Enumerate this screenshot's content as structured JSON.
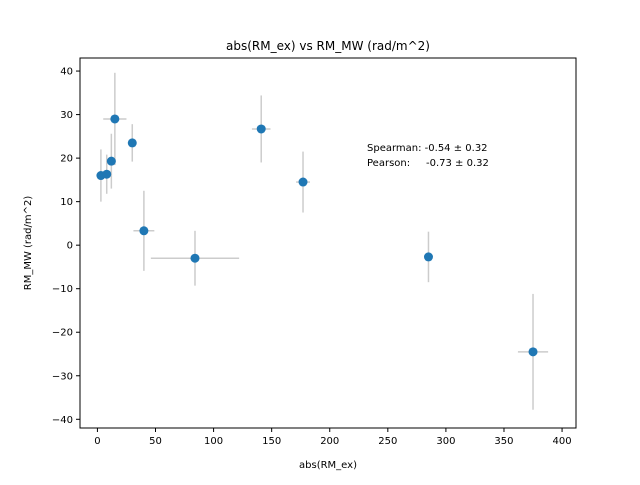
{
  "chart_data": {
    "type": "scatter",
    "title": "abs(RM_ex) vs RM_MW (rad/m^2)",
    "xlabel": "abs(RM_ex)",
    "ylabel": "RM_MW (rad/m^2)",
    "xlim": [
      -15,
      412
    ],
    "ylim": [
      -42,
      43
    ],
    "xticks": [
      0,
      50,
      100,
      150,
      200,
      250,
      300,
      350,
      400
    ],
    "yticks": [
      -40,
      -30,
      -20,
      -10,
      0,
      10,
      20,
      30,
      40
    ],
    "grid": false,
    "marker_color": "#1f77b4",
    "errorbar_color": "#cccccc",
    "points": [
      {
        "x": 3,
        "y": 16.0,
        "xerr": 0,
        "yerr": 6.0
      },
      {
        "x": 8,
        "y": 16.3,
        "xerr": 0,
        "yerr": 4.5
      },
      {
        "x": 12,
        "y": 19.3,
        "xerr": 0,
        "yerr": 6.3
      },
      {
        "x": 15,
        "y": 29.0,
        "xerr": 10,
        "yerr": 10.6
      },
      {
        "x": 30,
        "y": 23.5,
        "xerr": 0,
        "yerr": 4.3
      },
      {
        "x": 40,
        "y": 3.3,
        "xerr": 9,
        "yerr": 9.2
      },
      {
        "x": 84,
        "y": -3.0,
        "xerr": 38,
        "yerr": 6.3
      },
      {
        "x": 141,
        "y": 26.7,
        "xerr": 8,
        "yerr": 7.7
      },
      {
        "x": 177,
        "y": 14.5,
        "xerr": 6,
        "yerr": 7.0
      },
      {
        "x": 285,
        "y": -2.7,
        "xerr": 0,
        "yerr": 5.8
      },
      {
        "x": 375,
        "y": -24.5,
        "xerr": 13,
        "yerr": 13.3
      }
    ],
    "annotations": [
      "Spearman: -0.54 ± 0.32",
      "Pearson:     -0.73 ± 0.32"
    ]
  }
}
